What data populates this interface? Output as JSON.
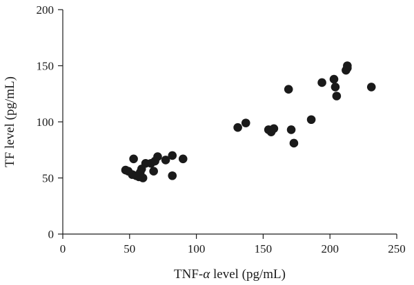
{
  "chart_data": {
    "type": "scatter",
    "title": "",
    "xlabel_prefix": "TNF-",
    "xlabel_symbol": "α",
    "xlabel_suffix": " level (pg/mL)",
    "ylabel": "TF level (pg/mL)",
    "xlim": [
      0,
      250
    ],
    "ylim": [
      0,
      200
    ],
    "xticks": [
      0,
      50,
      100,
      150,
      200,
      250
    ],
    "yticks": [
      0,
      50,
      100,
      150,
      200
    ],
    "grid": false,
    "marker_color": "#1a1a1a",
    "points": [
      {
        "x": 47,
        "y": 57
      },
      {
        "x": 49,
        "y": 56
      },
      {
        "x": 52,
        "y": 53
      },
      {
        "x": 53,
        "y": 67
      },
      {
        "x": 55,
        "y": 52
      },
      {
        "x": 57,
        "y": 51
      },
      {
        "x": 58,
        "y": 55
      },
      {
        "x": 59,
        "y": 58
      },
      {
        "x": 60,
        "y": 50
      },
      {
        "x": 62,
        "y": 63
      },
      {
        "x": 66,
        "y": 63
      },
      {
        "x": 68,
        "y": 56
      },
      {
        "x": 69,
        "y": 65
      },
      {
        "x": 71,
        "y": 69
      },
      {
        "x": 77,
        "y": 66
      },
      {
        "x": 82,
        "y": 52
      },
      {
        "x": 82,
        "y": 70
      },
      {
        "x": 90,
        "y": 67
      },
      {
        "x": 131,
        "y": 95
      },
      {
        "x": 137,
        "y": 99
      },
      {
        "x": 154,
        "y": 93
      },
      {
        "x": 156,
        "y": 91
      },
      {
        "x": 158,
        "y": 94
      },
      {
        "x": 169,
        "y": 129
      },
      {
        "x": 171,
        "y": 93
      },
      {
        "x": 173,
        "y": 81
      },
      {
        "x": 186,
        "y": 102
      },
      {
        "x": 194,
        "y": 135
      },
      {
        "x": 203,
        "y": 138
      },
      {
        "x": 204,
        "y": 131
      },
      {
        "x": 205,
        "y": 123
      },
      {
        "x": 212,
        "y": 146
      },
      {
        "x": 213,
        "y": 150
      },
      {
        "x": 213,
        "y": 148
      },
      {
        "x": 231,
        "y": 131
      }
    ]
  }
}
